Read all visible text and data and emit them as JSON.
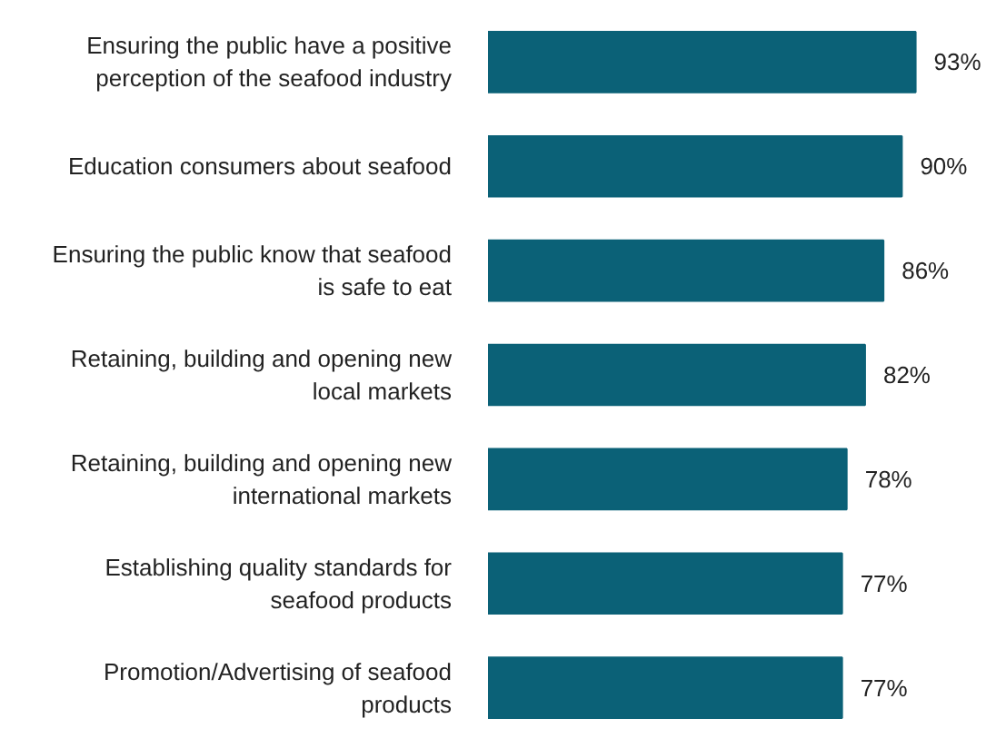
{
  "chart_data": {
    "type": "bar",
    "orientation": "horizontal",
    "categories": [
      "Ensuring the public have a positive perception of the seafood industry",
      "Education consumers about seafood",
      "Ensuring the public know that seafood is safe to eat",
      "Retaining, building and opening new local markets",
      "Retaining, building and opening new international markets",
      "Establishing quality standards for seafood products",
      "Promotion/Advertising of seafood products"
    ],
    "values": [
      93,
      90,
      86,
      82,
      78,
      77,
      77
    ],
    "value_labels": [
      "93%",
      "90%",
      "86%",
      "82%",
      "78%",
      "77%",
      "77%"
    ],
    "color": "#0b6177",
    "tick_labels": "y",
    "grid": false
  }
}
